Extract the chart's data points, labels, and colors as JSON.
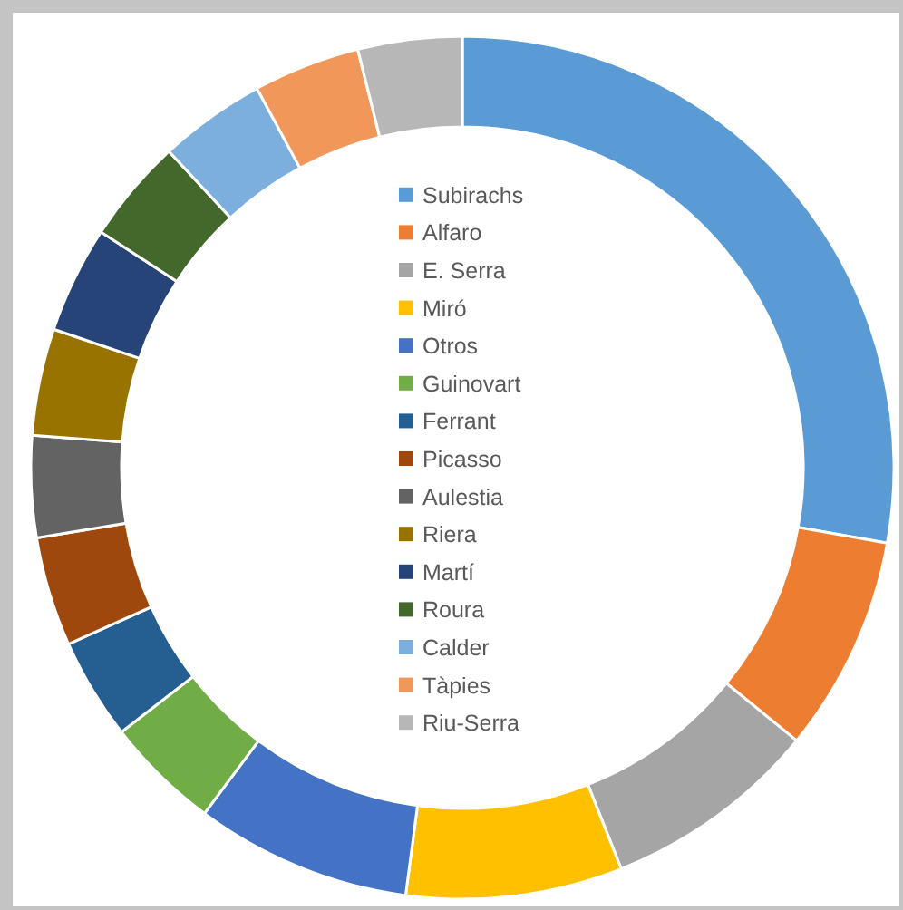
{
  "chart_data": {
    "type": "donut",
    "categories": [
      "Subirachs",
      "Alfaro",
      "E. Serra",
      "Miró",
      "Otros",
      "Guinovart",
      "Ferrant",
      "Picasso",
      "Aulestia",
      "Riera",
      "Martí",
      "Roura",
      "Calder",
      "Tàpies",
      "Riu-Serra"
    ],
    "values": [
      27.8,
      8.1,
      8.1,
      8.1,
      8.1,
      4.3,
      3.8,
      4.1,
      3.8,
      4.0,
      4.0,
      3.9,
      4.0,
      4.0,
      3.9
    ],
    "colors": [
      "#5b9bd5",
      "#ed7d31",
      "#a5a5a5",
      "#ffc000",
      "#4472c4",
      "#70ad47",
      "#255e91",
      "#9e480e",
      "#636363",
      "#997300",
      "#264478",
      "#43682b",
      "#7cafdd",
      "#f1975a",
      "#b7b7b7"
    ],
    "legend": "center"
  }
}
